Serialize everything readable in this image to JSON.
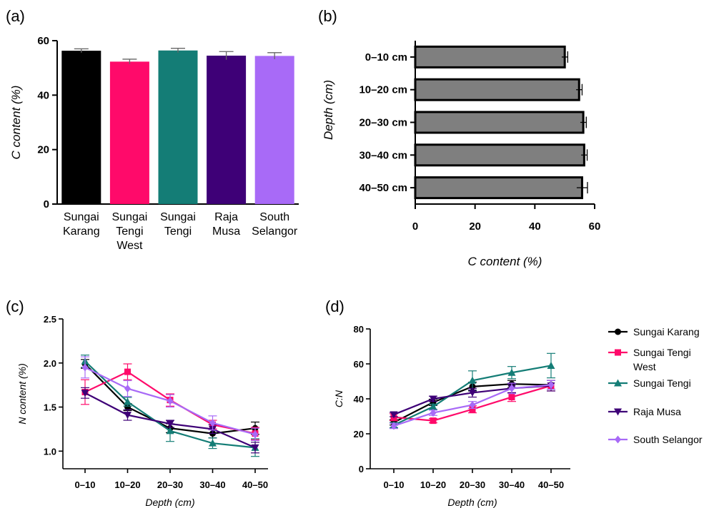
{
  "panels": {
    "a": "(a)",
    "b": "(b)",
    "c": "(c)",
    "d": "(d)"
  },
  "chart_data": [
    {
      "id": "a",
      "type": "bar",
      "categories": [
        [
          "Sungai",
          "Karang"
        ],
        [
          "Sungai",
          "Tengi",
          "West"
        ],
        [
          "Sungai",
          "Tengi"
        ],
        [
          "Raja",
          "Musa"
        ],
        [
          "South",
          "Selangor"
        ]
      ],
      "values": [
        56.3,
        52.3,
        56.4,
        54.5,
        54.4
      ],
      "errors": [
        0.7,
        0.9,
        0.8,
        1.5,
        1.2
      ],
      "colors": [
        "#000000",
        "#ff0a6a",
        "#147d76",
        "#3e0077",
        "#a86af7"
      ],
      "ylabel": "C content (%)",
      "ylim": [
        0,
        60
      ],
      "yticks": [
        0,
        20,
        40,
        60
      ]
    },
    {
      "id": "b",
      "type": "bar",
      "orientation": "horizontal",
      "categories": [
        "0–10 cm",
        "10–20 cm",
        "20–30 cm",
        "30–40 cm",
        "40–50 cm"
      ],
      "values": [
        50.0,
        54.8,
        56.2,
        56.5,
        55.8
      ],
      "errors": [
        1.0,
        1.0,
        1.0,
        1.0,
        1.8
      ],
      "bar_color": "#7f7f7f",
      "xlabel": "C content (%)",
      "ylabel": "Depth (cm)",
      "xlim": [
        0,
        60
      ],
      "xticks": [
        0,
        20,
        40,
        60
      ]
    },
    {
      "id": "c",
      "type": "line",
      "categories": [
        "0–10",
        "10–20",
        "20–30",
        "30–40",
        "40–50"
      ],
      "xlabel": "Depth (cm)",
      "ylabel": "N content (%)",
      "ylim": [
        0.8,
        2.5
      ],
      "yticks": [
        "1.0",
        "1.5",
        "2.0",
        "2.5"
      ],
      "series": [
        {
          "name": "Sungai Karang",
          "color": "#000000",
          "marker": "circle",
          "values": [
            1.99,
            1.5,
            1.26,
            1.2,
            1.26
          ],
          "errors": [
            0.05,
            0.04,
            0.05,
            0.05,
            0.07
          ]
        },
        {
          "name": "Sungai Tengi West",
          "color": "#ff0a6a",
          "marker": "square",
          "values": [
            1.67,
            1.9,
            1.58,
            1.3,
            1.2
          ],
          "errors": [
            0.14,
            0.09,
            0.07,
            0.05,
            0.07
          ]
        },
        {
          "name": "Sungai Tengi",
          "color": "#147d76",
          "marker": "triangle-up",
          "values": [
            2.02,
            1.56,
            1.23,
            1.09,
            1.04
          ],
          "errors": [
            0.07,
            0.05,
            0.12,
            0.06,
            0.1
          ]
        },
        {
          "name": "Raja Musa",
          "color": "#3e0077",
          "marker": "triangle-down",
          "values": [
            1.66,
            1.41,
            1.31,
            1.25,
            1.04
          ],
          "errors": [
            0.06,
            0.06,
            0.04,
            0.05,
            0.06
          ]
        },
        {
          "name": "South Selangor",
          "color": "#a86af7",
          "marker": "diamond",
          "values": [
            1.95,
            1.71,
            1.57,
            1.32,
            1.19
          ],
          "errors": [
            0.12,
            0.09,
            0.07,
            0.08,
            0.07
          ]
        }
      ]
    },
    {
      "id": "d",
      "type": "line",
      "categories": [
        "0–10",
        "10–20",
        "20–30",
        "30–40",
        "40–50"
      ],
      "xlabel": "Depth (cm)",
      "ylabel": "C:N",
      "ylim": [
        0,
        80
      ],
      "yticks": [
        0,
        20,
        40,
        60,
        80
      ],
      "legend_position": "right",
      "series": [
        {
          "name": "Sungai Karang",
          "color": "#000000",
          "marker": "circle",
          "values": [
            26.5,
            38.0,
            47.0,
            48.5,
            48.0
          ],
          "errors": [
            1.5,
            1.8,
            2.5,
            2.0,
            2.5
          ]
        },
        {
          "name": "Sungai Tengi West",
          "color": "#ff0a6a",
          "marker": "square",
          "values": [
            29.5,
            27.5,
            34.0,
            41.0,
            47.5
          ],
          "errors": [
            2.0,
            1.2,
            2.0,
            2.5,
            3.0
          ]
        },
        {
          "name": "Sungai Tengi",
          "color": "#147d76",
          "marker": "triangle-up",
          "values": [
            25.0,
            35.5,
            50.5,
            55.0,
            59.0
          ],
          "errors": [
            1.5,
            1.5,
            5.5,
            3.5,
            7.0
          ]
        },
        {
          "name": "Raja Musa",
          "color": "#3e0077",
          "marker": "triangle-down",
          "values": [
            31.0,
            40.0,
            43.5,
            46.0,
            47.5
          ],
          "errors": [
            1.2,
            1.5,
            2.5,
            2.5,
            3.0
          ]
        },
        {
          "name": "South Selangor",
          "color": "#a86af7",
          "marker": "diamond",
          "values": [
            24.5,
            32.0,
            36.5,
            46.0,
            48.0
          ],
          "errors": [
            1.5,
            1.5,
            2.0,
            3.0,
            2.5
          ]
        }
      ]
    }
  ],
  "legend": {
    "items": [
      {
        "lines": [
          "Sungai Karang"
        ],
        "color": "#000000",
        "marker": "circle"
      },
      {
        "lines": [
          "Sungai Tengi",
          "West"
        ],
        "color": "#ff0a6a",
        "marker": "square"
      },
      {
        "lines": [
          "Sungai Tengi"
        ],
        "color": "#147d76",
        "marker": "triangle-up"
      },
      {
        "lines": [
          "Raja Musa"
        ],
        "color": "#3e0077",
        "marker": "triangle-down"
      },
      {
        "lines": [
          "South Selangor"
        ],
        "color": "#a86af7",
        "marker": "diamond"
      }
    ]
  }
}
